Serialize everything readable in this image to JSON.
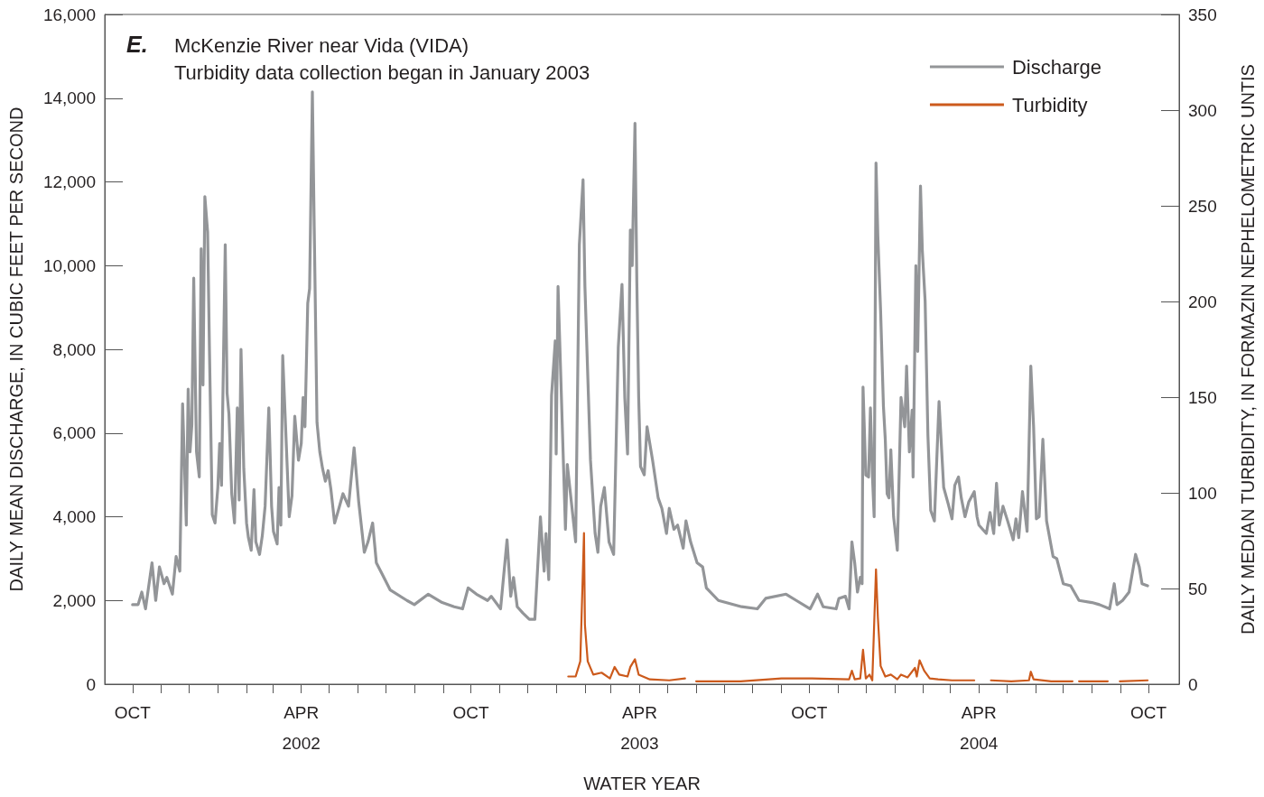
{
  "chart_data": {
    "type": "line",
    "title": "McKenzie River near Vida (VIDA)",
    "subtitle": "Turbidity data collection began in January 2003",
    "annotations": [
      "E."
    ],
    "xlabel": "WATER YEAR",
    "ylabel": "DAILY MEAN DISCHARGE, IN CUBIC FEET PER SECOND",
    "y2label": "DAILY MEDIAN TURBIDITY, IN FORMAZIN NEPHELOMETRIC UNTIS",
    "xlim": [
      "2001-09-01",
      "2004-11-03"
    ],
    "xticks": [
      {
        "value": "2001-10-01",
        "label": "OCT"
      },
      {
        "value": "2001-11-01",
        "label": null
      },
      {
        "value": "2001-12-01",
        "label": null
      },
      {
        "value": "2002-01-01",
        "label": null
      },
      {
        "value": "2002-02-01",
        "label": null
      },
      {
        "value": "2002-03-01",
        "label": null
      },
      {
        "value": "2002-04-01",
        "label": "APR\n2002"
      },
      {
        "value": "2002-05-01",
        "label": null
      },
      {
        "value": "2002-06-01",
        "label": null
      },
      {
        "value": "2002-07-01",
        "label": null
      },
      {
        "value": "2002-08-01",
        "label": null
      },
      {
        "value": "2002-09-01",
        "label": null
      },
      {
        "value": "2002-10-01",
        "label": "OCT"
      },
      {
        "value": "2002-11-01",
        "label": null
      },
      {
        "value": "2002-12-01",
        "label": null
      },
      {
        "value": "2003-01-01",
        "label": null
      },
      {
        "value": "2003-02-01",
        "label": null
      },
      {
        "value": "2003-03-01",
        "label": null
      },
      {
        "value": "2003-04-01",
        "label": "APR\n2003"
      },
      {
        "value": "2003-05-01",
        "label": null
      },
      {
        "value": "2003-06-01",
        "label": null
      },
      {
        "value": "2003-07-01",
        "label": null
      },
      {
        "value": "2003-08-01",
        "label": null
      },
      {
        "value": "2003-09-01",
        "label": null
      },
      {
        "value": "2003-10-01",
        "label": "OCT"
      },
      {
        "value": "2003-11-01",
        "label": null
      },
      {
        "value": "2003-12-01",
        "label": null
      },
      {
        "value": "2004-01-01",
        "label": null
      },
      {
        "value": "2004-02-01",
        "label": null
      },
      {
        "value": "2004-03-01",
        "label": null
      },
      {
        "value": "2004-04-01",
        "label": "APR\n2004"
      },
      {
        "value": "2004-05-01",
        "label": null
      },
      {
        "value": "2004-06-01",
        "label": null
      },
      {
        "value": "2004-07-01",
        "label": null
      },
      {
        "value": "2004-08-01",
        "label": null
      },
      {
        "value": "2004-09-01",
        "label": null
      },
      {
        "value": "2004-10-01",
        "label": "OCT"
      }
    ],
    "ylim": [
      0,
      16000
    ],
    "yticks": [
      0,
      {
        "value": 2000,
        "label": "2,000"
      },
      {
        "value": 4000,
        "label": "4,000"
      },
      {
        "value": 6000,
        "label": "6,000"
      },
      {
        "value": 8000,
        "label": "8,000"
      },
      {
        "value": 10000,
        "label": "10,000"
      },
      {
        "value": 12000,
        "label": "12,000"
      },
      {
        "value": 14000,
        "label": "14,000"
      },
      {
        "value": 16000,
        "label": "16,000"
      }
    ],
    "y2lim": [
      0,
      350
    ],
    "y2ticks": [
      0,
      50,
      100,
      150,
      200,
      250,
      300,
      350
    ],
    "grid": false,
    "legend": "top right",
    "series": [
      {
        "name": "Discharge",
        "color": "#939598",
        "axis": "y",
        "x": [
          "2001-10-01",
          "2001-10-07",
          "2001-10-11",
          "2001-10-15",
          "2001-10-22",
          "2001-10-26",
          "2001-10-30",
          "2001-11-04",
          "2001-11-07",
          "2001-11-13",
          "2001-11-17",
          "2001-11-21",
          "2001-11-24",
          "2001-11-28",
          "2001-11-30",
          "2001-12-02",
          "2001-12-04",
          "2001-12-06",
          "2001-12-09",
          "2001-12-12",
          "2001-12-14",
          "2001-12-16",
          "2001-12-18",
          "2001-12-21",
          "2001-12-23",
          "2001-12-26",
          "2001-12-29",
          "2002-01-01",
          "2002-01-03",
          "2002-01-05",
          "2002-01-09",
          "2002-01-11",
          "2002-01-13",
          "2002-01-16",
          "2002-01-19",
          "2002-01-22",
          "2002-01-24",
          "2002-01-26",
          "2002-01-29",
          "2002-02-01",
          "2002-02-03",
          "2002-02-06",
          "2002-02-09",
          "2002-02-11",
          "2002-02-15",
          "2002-02-18",
          "2002-02-21",
          "2002-02-25",
          "2002-02-28",
          "2002-03-02",
          "2002-03-06",
          "2002-03-08",
          "2002-03-10",
          "2002-03-12",
          "2002-03-16",
          "2002-03-19",
          "2002-03-22",
          "2002-03-25",
          "2002-03-29",
          "2002-04-01",
          "2002-04-03",
          "2002-04-05",
          "2002-04-08",
          "2002-04-10",
          "2002-04-13",
          "2002-04-15",
          "2002-04-18",
          "2002-04-21",
          "2002-04-24",
          "2002-04-27",
          "2002-04-30",
          "2002-05-03",
          "2002-05-07",
          "2002-05-11",
          "2002-05-16",
          "2002-05-22",
          "2002-05-28",
          "2002-06-02",
          "2002-06-08",
          "2002-06-12",
          "2002-06-17",
          "2002-06-21",
          "2002-06-28",
          "2002-07-06",
          "2002-07-24",
          "2002-08-01",
          "2002-08-16",
          "2002-08-31",
          "2002-09-13",
          "2002-09-22",
          "2002-09-28",
          "2002-10-07",
          "2002-10-19",
          "2002-10-23",
          "2002-11-02",
          "2002-11-09",
          "2002-11-13",
          "2002-11-16",
          "2002-11-20",
          "2002-11-26",
          "2002-12-03",
          "2002-12-09",
          "2002-12-15",
          "2002-12-19",
          "2002-12-21",
          "2002-12-24",
          "2002-12-27",
          "2002-12-31",
          "2003-01-01",
          "2003-01-03",
          "2003-01-11",
          "2003-01-13",
          "2003-01-22",
          "2003-01-26",
          "2003-01-30",
          "2003-02-01",
          "2003-02-07",
          "2003-02-12",
          "2003-02-15",
          "2003-02-18",
          "2003-02-22",
          "2003-02-27",
          "2003-03-04",
          "2003-03-09",
          "2003-03-13",
          "2003-03-16",
          "2003-03-19",
          "2003-03-22",
          "2003-03-24",
          "2003-03-27",
          "2003-03-29",
          "2003-03-31",
          "2003-04-02",
          "2003-04-06",
          "2003-04-09",
          "2003-04-15",
          "2003-04-21",
          "2003-04-25",
          "2003-04-30",
          "2003-05-03",
          "2003-05-08",
          "2003-05-12",
          "2003-05-18",
          "2003-05-21",
          "2003-05-26",
          "2003-06-02",
          "2003-06-08",
          "2003-06-12",
          "2003-06-25",
          "2003-07-20",
          "2003-08-06",
          "2003-08-15",
          "2003-09-06",
          "2003-09-17",
          "2003-10-02",
          "2003-10-10",
          "2003-10-16",
          "2003-10-30",
          "2003-11-02",
          "2003-11-09",
          "2003-11-13",
          "2003-11-16",
          "2003-11-19",
          "2003-11-22",
          "2003-11-25",
          "2003-11-27",
          "2003-11-28",
          "2003-12-01",
          "2003-12-04",
          "2003-12-06",
          "2003-12-08",
          "2003-12-10",
          "2003-12-12",
          "2003-12-14",
          "2003-12-17",
          "2003-12-20",
          "2003-12-22",
          "2003-12-24",
          "2003-12-26",
          "2003-12-28",
          "2003-12-31",
          "2004-01-04",
          "2004-01-08",
          "2004-01-12",
          "2004-01-14",
          "2004-01-17",
          "2004-01-20",
          "2004-01-21",
          "2004-01-24",
          "2004-01-26",
          "2004-01-29",
          "2004-01-31",
          "2004-02-03",
          "2004-02-06",
          "2004-02-09",
          "2004-02-13",
          "2004-02-18",
          "2004-02-23",
          "2004-02-28",
          "2004-03-03",
          "2004-03-06",
          "2004-03-10",
          "2004-03-13",
          "2004-03-17",
          "2004-03-21",
          "2004-03-27",
          "2004-03-30",
          "2004-04-01",
          "2004-04-09",
          "2004-04-13",
          "2004-04-17",
          "2004-04-20",
          "2004-04-23",
          "2004-04-27",
          "2004-05-02",
          "2004-05-08",
          "2004-05-11",
          "2004-05-14",
          "2004-05-18",
          "2004-05-23",
          "2004-05-27",
          "2004-05-30",
          "2004-06-02",
          "2004-06-05",
          "2004-06-09",
          "2004-06-13",
          "2004-06-20",
          "2004-06-24",
          "2004-07-01",
          "2004-07-09",
          "2004-07-18",
          "2004-08-01",
          "2004-08-09",
          "2004-08-20",
          "2004-08-25",
          "2004-08-28",
          "2004-09-03",
          "2004-09-10",
          "2004-09-17",
          "2004-09-21",
          "2004-09-24",
          "2004-09-30"
        ],
        "values": [
          1900,
          1900,
          2200,
          1800,
          2900,
          2000,
          2800,
          2400,
          2550,
          2150,
          3050,
          2700,
          6700,
          3800,
          7050,
          5550,
          6200,
          9700,
          5550,
          4950,
          10400,
          7150,
          11650,
          10800,
          7950,
          4050,
          3850,
          4700,
          5750,
          4750,
          10500,
          6950,
          6450,
          4550,
          3850,
          6600,
          4400,
          8000,
          5150,
          3850,
          3500,
          3200,
          4650,
          3400,
          3100,
          3550,
          4250,
          6600,
          4250,
          3650,
          3350,
          4700,
          3800,
          7850,
          5650,
          4000,
          4500,
          6400,
          5350,
          5750,
          6850,
          6150,
          9100,
          9450,
          14150,
          10900,
          6250,
          5550,
          5150,
          4850,
          5100,
          4650,
          3850,
          4150,
          4550,
          4250,
          5650,
          4350,
          3150,
          3400,
          3850,
          2900,
          2600,
          2250,
          2000,
          1900,
          2150,
          1950,
          1850,
          1800,
          2300,
          2150,
          2000,
          2100,
          1800,
          3450,
          2100,
          2550,
          1850,
          1700,
          1550,
          1550,
          4000,
          2700,
          3600,
          2500,
          6900,
          8200,
          5500,
          9500,
          3700,
          5250,
          3400,
          10500,
          12050,
          9500,
          5350,
          3600,
          3150,
          4250,
          4700,
          3400,
          3100,
          8050,
          9550,
          6850,
          5500,
          10850,
          10000,
          13400,
          9600,
          6850,
          5200,
          5000,
          6150,
          5350,
          4450,
          4200,
          3600,
          4200,
          3700,
          3800,
          3250,
          3900,
          3400,
          2900,
          2800,
          2300,
          2000,
          1850,
          1800,
          2050,
          2150,
          2000,
          1800,
          2150,
          1850,
          1800,
          2050,
          2100,
          1800,
          3400,
          2900,
          2200,
          2550,
          2400,
          7100,
          5000,
          4950,
          6600,
          5050,
          4000,
          12450,
          10700,
          8900,
          6650,
          5850,
          4550,
          4450,
          5600,
          4000,
          3200,
          6850,
          6150,
          7600,
          5550,
          6550,
          4950,
          10000,
          7950,
          11900,
          10350,
          9150,
          5950,
          4150,
          3900,
          6750,
          4700,
          4300,
          3950,
          4750,
          4950,
          4450,
          4000,
          4350,
          4600,
          4000,
          3800,
          3600,
          4100,
          3600,
          4800,
          3800,
          4250,
          3900,
          3450,
          3950,
          3500,
          4600,
          3650,
          7600,
          6150,
          3950,
          4000,
          5850,
          3900,
          3050,
          3000,
          2400,
          2350,
          2000,
          1950,
          1900,
          1800,
          2400,
          1900,
          2000,
          2200,
          3100,
          2800,
          2400,
          2350
        ]
      },
      {
        "name": "Turbidity",
        "color": "#cc5a1c",
        "axis": "y2",
        "x": [
          "2003-01-14",
          "2003-01-22",
          "2003-01-27",
          "2003-01-31",
          "2003-02-01",
          "2003-02-04",
          "2003-02-10",
          "2003-02-19",
          "2003-02-28",
          "2003-03-05",
          "2003-03-10",
          "2003-03-19",
          "2003-03-22",
          "2003-03-27",
          "2003-03-31",
          "2003-04-12",
          "2003-05-03",
          "2003-05-20",
          "2003-05-26",
          "2003-06-01",
          "2003-07-19",
          "2003-09-01",
          "2003-10-04",
          "2003-11-13",
          "2003-11-16",
          "2003-11-19",
          "2003-11-25",
          "2003-11-28",
          "2003-12-01",
          "2003-12-05",
          "2003-12-08",
          "2003-12-12",
          "2003-12-14",
          "2003-12-17",
          "2003-12-22",
          "2003-12-28",
          "2004-01-04",
          "2004-01-08",
          "2004-01-15",
          "2004-01-23",
          "2004-01-25",
          "2004-01-28",
          "2004-02-02",
          "2004-02-08",
          "2004-02-17",
          "2004-03-03",
          "2004-03-27",
          "2004-04-07",
          "2004-04-14",
          "2004-05-06",
          "2004-05-25",
          "2004-05-27",
          "2004-05-30",
          "2004-06-18",
          "2004-07-11",
          "2004-07-15",
          "2004-07-18",
          "2004-08-18",
          "2004-08-22",
          "2004-08-31",
          "2004-09-30"
        ],
        "values": [
          4,
          4,
          12,
          79,
          31,
          12,
          5,
          6,
          3,
          9,
          5,
          4,
          9,
          13,
          5,
          2.5,
          2,
          3,
          null,
          1.5,
          1.5,
          3,
          3,
          2.5,
          7,
          2.5,
          3,
          18,
          3,
          5,
          2,
          60,
          35,
          9.5,
          4,
          5,
          2.5,
          5,
          3.5,
          8.5,
          4,
          12.5,
          7,
          3,
          2.5,
          2,
          2,
          null,
          2,
          1.5,
          2,
          6.5,
          2.5,
          1.5,
          1.5,
          null,
          1.5,
          1.5,
          null,
          1.5,
          2
        ]
      }
    ]
  }
}
